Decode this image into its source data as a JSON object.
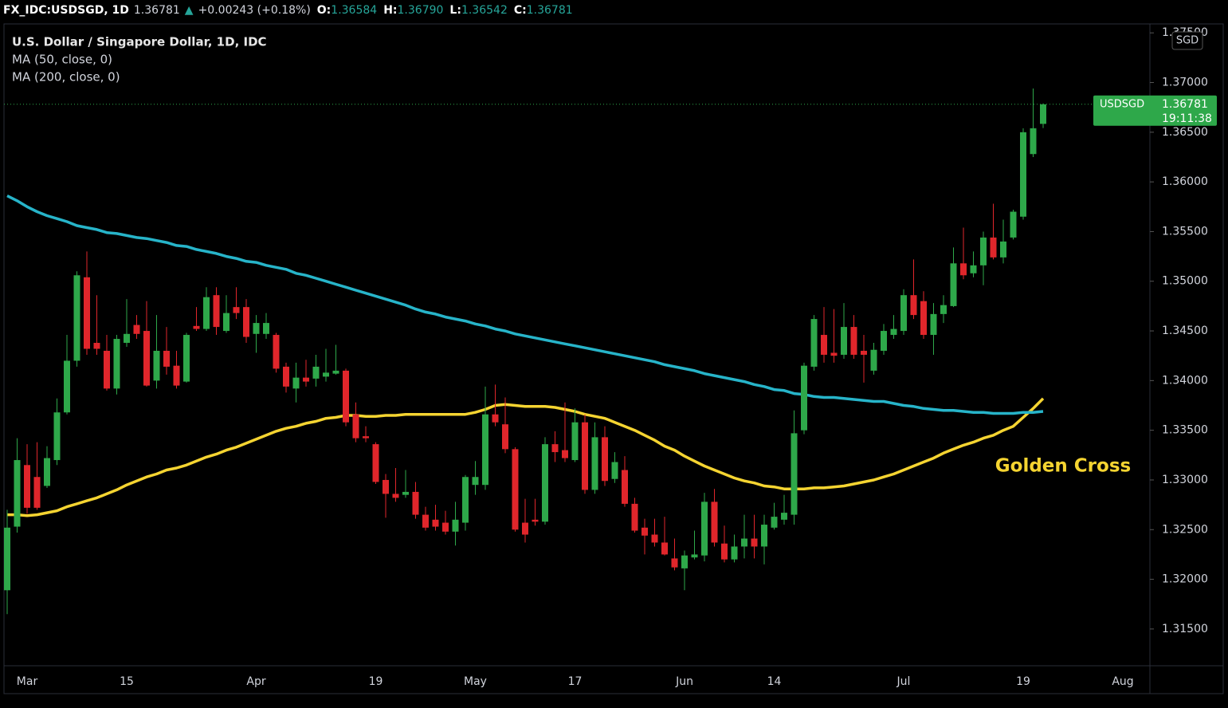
{
  "header": {
    "symbol": "FX_IDC:USDSGD, 1D",
    "price": "1.36781",
    "arrow": "▲",
    "change": "+0.00243 (+0.18%)",
    "ohlc": [
      {
        "label": "O:",
        "value": "1.36584"
      },
      {
        "label": "H:",
        "value": "1.36790"
      },
      {
        "label": "L:",
        "value": "1.36542"
      },
      {
        "label": "C:",
        "value": "1.36781"
      }
    ]
  },
  "chart_data": {
    "type": "candlestick",
    "title": "U.S. Dollar / Singapore Dollar, 1D, IDC",
    "currency": "SGD",
    "annotation": "Golden Cross",
    "price_tag": {
      "symbol": "USDSGD",
      "label": "1.36781",
      "countdown": "19:11:38"
    },
    "up_color": "#2ea84a",
    "down_color": "#e0262b",
    "categories": [
      null,
      null,
      "Mar",
      null,
      null,
      null,
      null,
      null,
      null,
      null,
      null,
      null,
      "15",
      null,
      null,
      null,
      null,
      null,
      null,
      null,
      null,
      null,
      null,
      null,
      null,
      "Apr",
      null,
      null,
      null,
      null,
      null,
      null,
      null,
      null,
      null,
      null,
      null,
      "19",
      null,
      null,
      null,
      null,
      null,
      null,
      null,
      null,
      null,
      "May",
      null,
      null,
      null,
      null,
      null,
      null,
      null,
      null,
      null,
      "17",
      null,
      null,
      null,
      null,
      null,
      null,
      null,
      null,
      null,
      null,
      "Jun",
      null,
      null,
      null,
      null,
      null,
      null,
      null,
      null,
      "14",
      null,
      null,
      null,
      null,
      null,
      null,
      null,
      null,
      null,
      null,
      null,
      null,
      "Jul",
      null,
      null,
      null,
      null,
      null,
      null,
      null,
      null,
      null,
      null,
      null,
      "19",
      null,
      null,
      null,
      null,
      null,
      null,
      null,
      null,
      null,
      "Aug"
    ],
    "open": [
      1.3189,
      1.3253,
      1.3315,
      1.3303,
      1.3294,
      1.332,
      1.3368,
      1.342,
      1.3504,
      1.3438,
      1.343,
      1.3392,
      1.3438,
      1.3456,
      1.345,
      1.34,
      1.343,
      1.3415,
      1.3399,
      1.3455,
      1.3452,
      1.3486,
      1.345,
      1.3474,
      1.3474,
      1.3447,
      1.3447,
      1.3446,
      1.3414,
      1.3392,
      1.3403,
      1.3402,
      1.3404,
      1.3407,
      1.341,
      1.3366,
      1.3344,
      1.3336,
      1.33,
      1.3286,
      1.3285,
      1.3288,
      1.3265,
      1.326,
      1.3257,
      1.3248,
      1.3257,
      1.3295,
      1.3295,
      1.3366,
      1.3356,
      1.3331,
      1.3257,
      1.326,
      1.3258,
      1.3336,
      1.333,
      1.332,
      1.3358,
      1.329,
      1.3343,
      1.3301,
      1.331,
      1.3276,
      1.3252,
      1.3245,
      1.3237,
      1.3221,
      1.3211,
      1.3222,
      1.3224,
      1.3278,
      1.3236,
      1.322,
      1.3233,
      1.3241,
      1.3233,
      1.3252,
      1.326,
      1.3265,
      1.335,
      1.3414,
      1.3446,
      1.3428,
      1.3426,
      1.3454,
      1.343,
      1.341,
      1.343,
      1.3446,
      1.345,
      1.3486,
      1.348,
      1.3446,
      1.3467,
      1.3475,
      1.3518,
      1.3508,
      1.3516,
      1.3544,
      1.3524,
      1.3544,
      1.3565,
      1.3628,
      1.36584,
      null,
      null,
      null,
      null,
      null,
      null,
      null,
      null
    ],
    "high": [
      1.327,
      1.3342,
      1.3336,
      1.3338,
      1.3334,
      1.3382,
      1.3446,
      1.351,
      1.353,
      1.3486,
      1.3446,
      1.3446,
      1.3482,
      1.3466,
      1.348,
      1.3466,
      1.3454,
      1.343,
      1.3448,
      1.3474,
      1.3494,
      1.3494,
      1.3486,
      1.3494,
      1.3482,
      1.3466,
      1.3468,
      1.3448,
      1.3418,
      1.3418,
      1.3421,
      1.3426,
      1.3432,
      1.3436,
      1.3412,
      1.3378,
      1.3354,
      1.3338,
      1.3306,
      1.3312,
      1.331,
      1.3298,
      1.3273,
      1.3275,
      1.3269,
      1.3278,
      1.3305,
      1.3319,
      1.3394,
      1.3396,
      1.3383,
      1.3333,
      1.3281,
      1.3281,
      1.3343,
      1.3349,
      1.3378,
      1.3372,
      1.3366,
      1.3358,
      1.3354,
      1.3328,
      1.3324,
      1.3282,
      1.3261,
      1.3261,
      1.3263,
      1.3241,
      1.3229,
      1.3249,
      1.3287,
      1.3291,
      1.3254,
      1.3245,
      1.3265,
      1.3265,
      1.3265,
      1.3277,
      1.3285,
      1.337,
      1.3418,
      1.3466,
      1.3474,
      1.3472,
      1.3478,
      1.3466,
      1.3446,
      1.3438,
      1.3457,
      1.3466,
      1.3492,
      1.3522,
      1.349,
      1.3478,
      1.3486,
      1.3534,
      1.3554,
      1.353,
      1.355,
      1.3578,
      1.3562,
      1.3572,
      1.3654,
      1.3694,
      1.3679,
      null,
      null,
      null,
      null,
      null,
      null,
      null,
      null
    ],
    "low": [
      1.3165,
      1.3247,
      1.3266,
      1.327,
      1.3292,
      1.3315,
      1.3366,
      1.3414,
      1.3426,
      1.3426,
      1.339,
      1.3386,
      1.3434,
      1.3442,
      1.3394,
      1.3392,
      1.3406,
      1.3392,
      1.3398,
      1.345,
      1.345,
      1.3446,
      1.3448,
      1.3462,
      1.3438,
      1.3428,
      1.3442,
      1.3408,
      1.3388,
      1.3378,
      1.3394,
      1.3394,
      1.3399,
      1.3406,
      1.3354,
      1.3338,
      1.3338,
      1.3296,
      1.3262,
      1.3278,
      1.3282,
      1.3261,
      1.3249,
      1.3249,
      1.3245,
      1.3234,
      1.3249,
      1.3285,
      1.329,
      1.3354,
      1.3327,
      1.3248,
      1.3237,
      1.3254,
      1.3255,
      1.3318,
      1.3318,
      1.3318,
      1.3286,
      1.3286,
      1.3294,
      1.3297,
      1.3273,
      1.3247,
      1.3225,
      1.3233,
      1.3224,
      1.3209,
      1.3189,
      1.322,
      1.3218,
      1.3233,
      1.3217,
      1.3217,
      1.3221,
      1.3221,
      1.3215,
      1.325,
      1.3255,
      1.3255,
      1.3346,
      1.341,
      1.3418,
      1.3418,
      1.3422,
      1.3422,
      1.3398,
      1.3406,
      1.3426,
      1.3442,
      1.3446,
      1.3462,
      1.3442,
      1.3426,
      1.3458,
      1.3474,
      1.3502,
      1.3504,
      1.3496,
      1.3522,
      1.3518,
      1.3542,
      1.3562,
      1.3625,
      1.36542,
      null,
      null,
      null,
      null,
      null,
      null,
      null,
      null
    ],
    "close": [
      1.3252,
      1.332,
      1.3272,
      1.3272,
      1.3322,
      1.3368,
      1.342,
      1.3506,
      1.3432,
      1.3432,
      1.3392,
      1.3442,
      1.3447,
      1.3447,
      1.3395,
      1.343,
      1.3414,
      1.3395,
      1.3446,
      1.3452,
      1.3484,
      1.3454,
      1.3468,
      1.3468,
      1.3444,
      1.3458,
      1.3458,
      1.3412,
      1.3394,
      1.3403,
      1.3399,
      1.3414,
      1.3408,
      1.341,
      1.3358,
      1.3342,
      1.3342,
      1.3298,
      1.3286,
      1.3282,
      1.3288,
      1.3265,
      1.3252,
      1.3253,
      1.3248,
      1.326,
      1.3303,
      1.3303,
      1.3366,
      1.3358,
      1.3331,
      1.325,
      1.3245,
      1.3258,
      1.3336,
      1.3328,
      1.3322,
      1.3358,
      1.329,
      1.3343,
      1.3299,
      1.3318,
      1.3276,
      1.3249,
      1.3244,
      1.3237,
      1.3225,
      1.3212,
      1.3224,
      1.3225,
      1.3278,
      1.3237,
      1.322,
      1.3233,
      1.3241,
      1.3233,
      1.3255,
      1.3263,
      1.3267,
      1.3347,
      1.3415,
      1.3462,
      1.3426,
      1.3425,
      1.3454,
      1.3426,
      1.3426,
      1.3431,
      1.345,
      1.3452,
      1.3486,
      1.3466,
      1.3446,
      1.3467,
      1.3476,
      1.3518,
      1.3506,
      1.3516,
      1.3544,
      1.3524,
      1.354,
      1.357,
      1.365,
      1.3654,
      1.36781,
      null,
      null,
      null,
      null,
      null,
      null,
      null,
      null
    ],
    "series": [
      {
        "name": "MA (50, close, 0)",
        "color": "#f5d431",
        "values": [
          1.3265,
          1.3265,
          1.3264,
          1.3265,
          1.3267,
          1.3269,
          1.3273,
          1.3276,
          1.3279,
          1.3282,
          1.3286,
          1.329,
          1.3295,
          1.3299,
          1.3303,
          1.3306,
          1.331,
          1.3312,
          1.3315,
          1.3319,
          1.3323,
          1.3326,
          1.333,
          1.3333,
          1.3337,
          1.3341,
          1.3345,
          1.3349,
          1.3352,
          1.3354,
          1.3357,
          1.3359,
          1.3362,
          1.3363,
          1.3365,
          1.3365,
          1.3364,
          1.3364,
          1.3365,
          1.3365,
          1.3366,
          1.3366,
          1.3366,
          1.3366,
          1.3366,
          1.3366,
          1.3366,
          1.3368,
          1.3371,
          1.3375,
          1.3376,
          1.3375,
          1.3374,
          1.3374,
          1.3374,
          1.3373,
          1.3371,
          1.3369,
          1.3366,
          1.3364,
          1.3362,
          1.3358,
          1.3354,
          1.335,
          1.3345,
          1.334,
          1.3334,
          1.333,
          1.3324,
          1.3319,
          1.3314,
          1.331,
          1.3306,
          1.3302,
          1.3299,
          1.3297,
          1.3294,
          1.3293,
          1.3291,
          1.3291,
          1.3291,
          1.3292,
          1.3292,
          1.3293,
          1.3294,
          1.3296,
          1.3298,
          1.33,
          1.3303,
          1.3306,
          1.331,
          1.3314,
          1.3318,
          1.3322,
          1.3327,
          1.3331,
          1.3335,
          1.3338,
          1.3342,
          1.3345,
          1.335,
          1.3354,
          1.3363,
          1.3372,
          1.3382,
          null,
          null,
          null,
          null,
          null,
          null,
          null,
          null
        ]
      },
      {
        "name": "MA (200, close, 0)",
        "color": "#27b4c9",
        "values": [
          1.3586,
          1.3581,
          1.3575,
          1.357,
          1.3566,
          1.3563,
          1.356,
          1.3556,
          1.3554,
          1.3552,
          1.3549,
          1.3548,
          1.3546,
          1.3544,
          1.3543,
          1.3541,
          1.3539,
          1.3536,
          1.3535,
          1.3532,
          1.353,
          1.3528,
          1.3525,
          1.3523,
          1.352,
          1.3519,
          1.3516,
          1.3514,
          1.3512,
          1.3508,
          1.3506,
          1.3503,
          1.35,
          1.3497,
          1.3494,
          1.3491,
          1.3488,
          1.3485,
          1.3482,
          1.3479,
          1.3476,
          1.3472,
          1.3469,
          1.3467,
          1.3464,
          1.3462,
          1.346,
          1.3457,
          1.3455,
          1.3452,
          1.345,
          1.3447,
          1.3445,
          1.3443,
          1.3441,
          1.3439,
          1.3437,
          1.3435,
          1.3433,
          1.3431,
          1.3429,
          1.3427,
          1.3425,
          1.3423,
          1.3421,
          1.3419,
          1.3416,
          1.3414,
          1.3412,
          1.341,
          1.3407,
          1.3405,
          1.3403,
          1.3401,
          1.3399,
          1.3396,
          1.3394,
          1.3391,
          1.339,
          1.3387,
          1.3386,
          1.3384,
          1.3383,
          1.3383,
          1.3382,
          1.3381,
          1.338,
          1.3379,
          1.3379,
          1.3377,
          1.3375,
          1.3374,
          1.3372,
          1.3371,
          1.337,
          1.337,
          1.3369,
          1.3368,
          1.3368,
          1.3367,
          1.3367,
          1.3367,
          1.3368,
          1.3368,
          1.3369,
          null,
          null,
          null,
          null,
          null,
          null,
          null,
          null
        ]
      }
    ],
    "ylim": [
      1.3113,
      1.3759
    ],
    "yticks": [
      {
        "value": 1.315,
        "label": "1.31500"
      },
      {
        "value": 1.32,
        "label": "1.32000"
      },
      {
        "value": 1.325,
        "label": "1.32500"
      },
      {
        "value": 1.33,
        "label": "1.33000"
      },
      {
        "value": 1.335,
        "label": "1.33500"
      },
      {
        "value": 1.34,
        "label": "1.34000"
      },
      {
        "value": 1.345,
        "label": "1.34500"
      },
      {
        "value": 1.35,
        "label": "1.35000"
      },
      {
        "value": 1.355,
        "label": "1.35500"
      },
      {
        "value": 1.36,
        "label": "1.36000"
      },
      {
        "value": 1.365,
        "label": "1.36500"
      },
      {
        "value": 1.37,
        "label": "1.37000"
      },
      {
        "value": 1.375,
        "label": "1.37500"
      }
    ]
  }
}
